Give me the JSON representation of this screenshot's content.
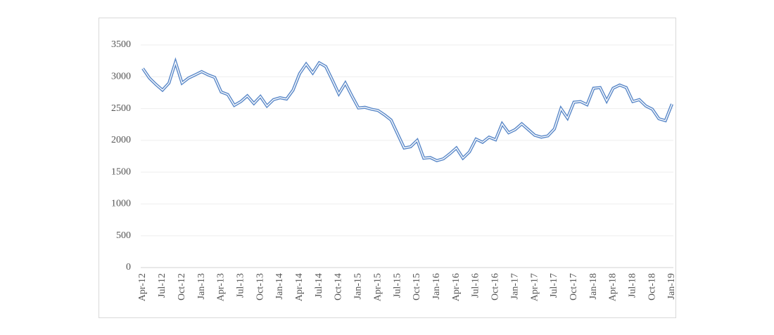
{
  "chart_data": {
    "type": "line",
    "categories": [
      "Apr-12",
      null,
      null,
      "Jul-12",
      null,
      null,
      "Oct-12",
      null,
      null,
      "Jan-13",
      null,
      null,
      "Apr-13",
      null,
      null,
      "Jul-13",
      null,
      null,
      "Oct-13",
      null,
      null,
      "Jan-14",
      null,
      null,
      "Apr-14",
      null,
      null,
      "Jul-14",
      null,
      null,
      "Oct-14",
      null,
      null,
      "Jan-15",
      null,
      null,
      "Apr-15",
      null,
      null,
      "Jul-15",
      null,
      null,
      "Oct-15",
      null,
      null,
      "Jan-16",
      null,
      null,
      "Apr-16",
      null,
      null,
      "Jul-16",
      null,
      null,
      "Oct-16",
      null,
      null,
      "Jan-17",
      null,
      null,
      "Apr-17",
      null,
      null,
      "Jul-17",
      null,
      null,
      "Oct-17",
      null,
      null,
      "Jan-18",
      null,
      null,
      "Apr-18",
      null,
      null,
      "Jul-18",
      null,
      null,
      "Oct-18",
      null,
      null,
      "Jan-19"
    ],
    "values": [
      3130,
      2980,
      2880,
      2790,
      2900,
      3230,
      2900,
      2980,
      3030,
      3080,
      3030,
      2990,
      2760,
      2720,
      2550,
      2610,
      2700,
      2580,
      2690,
      2540,
      2640,
      2670,
      2650,
      2790,
      3050,
      3200,
      3060,
      3220,
      3160,
      2950,
      2730,
      2900,
      2700,
      2510,
      2520,
      2490,
      2470,
      2400,
      2320,
      2100,
      1880,
      1900,
      2000,
      1720,
      1730,
      1680,
      1710,
      1790,
      1880,
      1720,
      1820,
      2020,
      1970,
      2050,
      2010,
      2260,
      2120,
      2170,
      2260,
      2170,
      2080,
      2050,
      2070,
      2180,
      2500,
      2350,
      2600,
      2610,
      2560,
      2820,
      2830,
      2620,
      2820,
      2870,
      2830,
      2610,
      2640,
      2540,
      2490,
      2340,
      2310,
      2570
    ],
    "color": "#5a88c8",
    "ylim": [
      0,
      3500
    ],
    "yticks": [
      0,
      500,
      1000,
      1500,
      2000,
      2500,
      3000,
      3500
    ],
    "grid": true
  }
}
